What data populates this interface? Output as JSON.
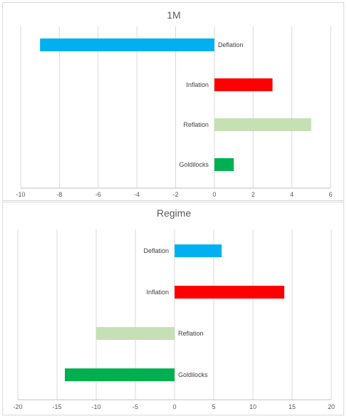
{
  "chart_data": [
    {
      "type": "bar",
      "orientation": "horizontal",
      "title": "1M",
      "categories": [
        "Deflation",
        "Inflation",
        "Reflation",
        "Goldilocks"
      ],
      "values": [
        -9,
        3,
        5,
        1
      ],
      "colors": [
        "#00b0f0",
        "#ff0000",
        "#c5e0b4",
        "#00b050"
      ],
      "xlim": [
        -10,
        6
      ],
      "xticks": [
        "-10",
        "-8",
        "-6",
        "-4",
        "-2",
        "0",
        "2",
        "4",
        "6"
      ],
      "tick_values": [
        -10,
        -8,
        -6,
        -4,
        -2,
        0,
        2,
        4,
        6
      ],
      "grid": true,
      "legend": "none"
    },
    {
      "type": "bar",
      "orientation": "horizontal",
      "title": "Regime",
      "categories": [
        "Deflation",
        "Inflation",
        "Reflation",
        "Goldilocks"
      ],
      "values": [
        6,
        14,
        -10,
        -14
      ],
      "colors": [
        "#00b0f0",
        "#ff0000",
        "#c5e0b4",
        "#00b050"
      ],
      "xlim": [
        -20,
        20
      ],
      "xticks": [
        "-20",
        "-15",
        "-10",
        "-5",
        "0",
        "5",
        "10",
        "15",
        "20"
      ],
      "tick_values": [
        -20,
        -15,
        -10,
        -5,
        0,
        5,
        10,
        15,
        20
      ],
      "grid": true,
      "legend": "none"
    }
  ]
}
